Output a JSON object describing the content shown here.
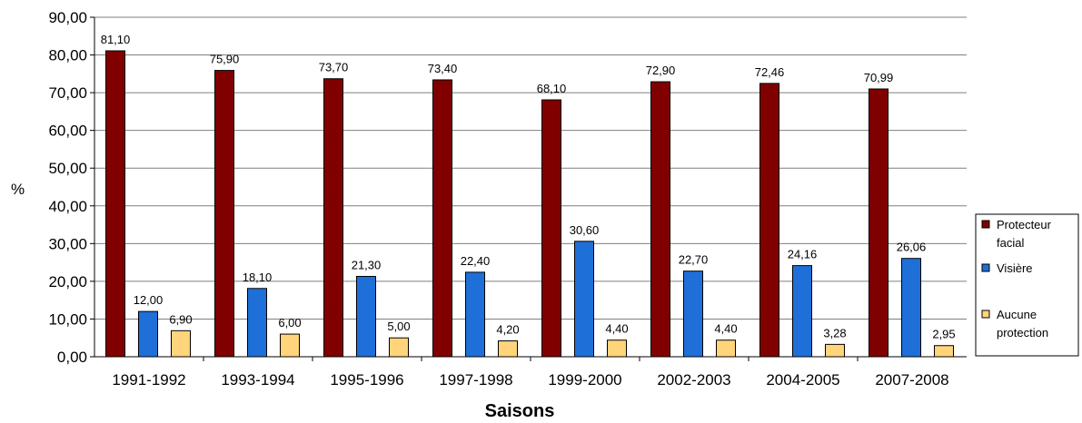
{
  "chart_data": {
    "type": "bar",
    "title": "",
    "xlabel": "Saisons",
    "ylabel": "%",
    "ylim": [
      0,
      90
    ],
    "yticks": [
      "0,00",
      "10,00",
      "20,00",
      "30,00",
      "40,00",
      "50,00",
      "60,00",
      "70,00",
      "80,00",
      "90,00"
    ],
    "grid": true,
    "legend_position": "right",
    "categories": [
      "1991-1992",
      "1993-1994",
      "1995-1996",
      "1997-1998",
      "1999-2000",
      "2002-2003",
      "2004-2005",
      "2007-2008"
    ],
    "series": [
      {
        "name": "Protecteur facial",
        "legend_lines": [
          "Protecteur",
          "facial"
        ],
        "color": "#800000",
        "values": [
          81.1,
          75.9,
          73.7,
          73.4,
          68.1,
          72.9,
          72.46,
          70.99
        ],
        "labels": [
          "81,10",
          "75,90",
          "73,70",
          "73,40",
          "68,10",
          "72,90",
          "72,46",
          "70,99"
        ]
      },
      {
        "name": "Visière",
        "legend_lines": [
          "Visière"
        ],
        "color": "#1F6FD8",
        "values": [
          12.0,
          18.1,
          21.3,
          22.4,
          30.6,
          22.7,
          24.16,
          26.06
        ],
        "labels": [
          "12,00",
          "18,10",
          "21,30",
          "22,40",
          "30,60",
          "22,70",
          "24,16",
          "26,06"
        ]
      },
      {
        "name": "Aucune protection",
        "legend_lines": [
          "Aucune",
          "protection"
        ],
        "color": "#FFD47A",
        "values": [
          6.9,
          6.0,
          5.0,
          4.2,
          4.4,
          4.4,
          3.28,
          2.95
        ],
        "labels": [
          "6,90",
          "6,00",
          "5,00",
          "4,20",
          "4,40",
          "4,40",
          "3,28",
          "2,95"
        ]
      }
    ]
  }
}
